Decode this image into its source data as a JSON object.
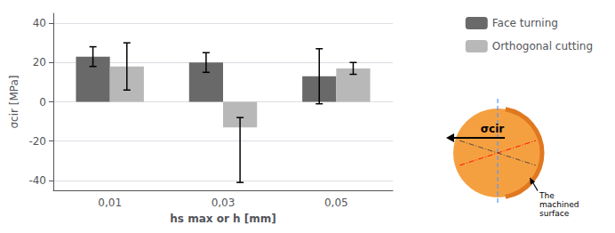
{
  "chart_data": {
    "type": "bar",
    "categories": [
      "0,01",
      "0,03",
      "0,05"
    ],
    "series": [
      {
        "name": "Face turning",
        "color": "#696969",
        "values": [
          23,
          20,
          13
        ],
        "errors_up": [
          5,
          5,
          14
        ],
        "errors_down": [
          5,
          5,
          14
        ]
      },
      {
        "name": "Orthogonal cutting",
        "color": "#b8b8b8",
        "values": [
          18,
          -13,
          17
        ],
        "errors_up": [
          12,
          5,
          3
        ],
        "errors_down": [
          12,
          28,
          3
        ]
      }
    ],
    "ylim": [
      -45,
      45
    ],
    "yticks": [
      -40,
      -20,
      0,
      20,
      40
    ],
    "xlabel": "hs max or h [mm]",
    "ylabel": "σcir [MPa]",
    "grid": true,
    "legend": "upper right",
    "annotations": [
      {
        "text": "σcir"
      },
      {
        "text": "The\nmachined\nsurface"
      }
    ]
  }
}
